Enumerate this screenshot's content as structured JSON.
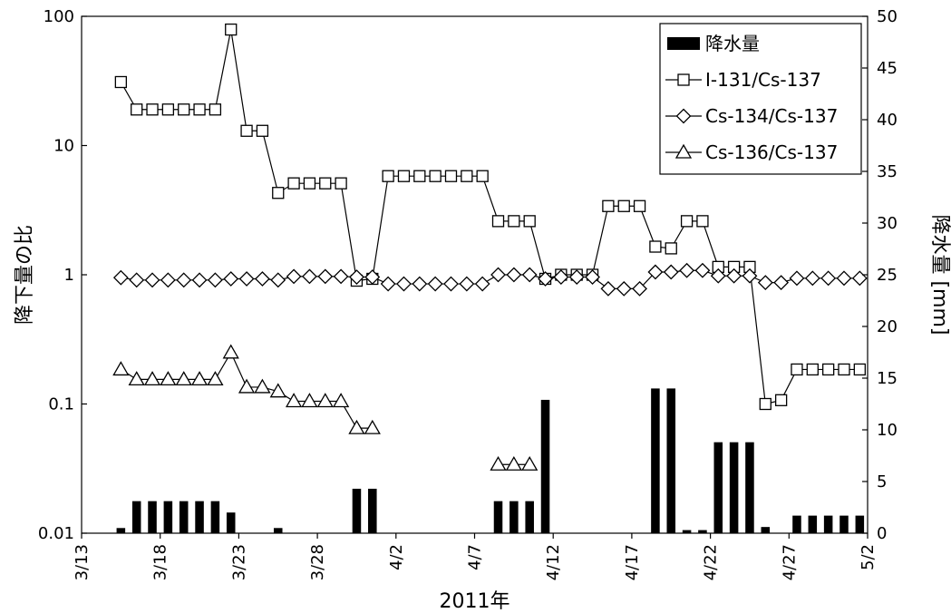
{
  "chart_data": {
    "type": "bar+line",
    "xlabel": "2011年",
    "ylabel_left": "降下量の比",
    "ylabel_right": "降水量 [mm]",
    "x_start_day": 0,
    "x_end_day": 50,
    "x_ticks": [
      {
        "day": 0,
        "label": "3/13"
      },
      {
        "day": 5,
        "label": "3/18"
      },
      {
        "day": 10,
        "label": "3/23"
      },
      {
        "day": 15,
        "label": "3/28"
      },
      {
        "day": 20,
        "label": "4/2"
      },
      {
        "day": 25,
        "label": "4/7"
      },
      {
        "day": 30,
        "label": "4/12"
      },
      {
        "day": 35,
        "label": "4/17"
      },
      {
        "day": 40,
        "label": "4/22"
      },
      {
        "day": 45,
        "label": "4/27"
      },
      {
        "day": 50,
        "label": "5/2"
      }
    ],
    "y_left": {
      "scale": "log",
      "min": 0.01,
      "max": 100,
      "ticks": [
        "0.01",
        "0.1",
        "1",
        "10",
        "100"
      ]
    },
    "y_right": {
      "min": 0,
      "max": 50,
      "step": 5,
      "ticks": [
        "0",
        "5",
        "10",
        "15",
        "20",
        "25",
        "30",
        "35",
        "40",
        "45",
        "50"
      ]
    },
    "legend": {
      "position": "top-right",
      "items": [
        {
          "label": "降水量",
          "symbol": "bar"
        },
        {
          "label": "I-131/Cs-137",
          "symbol": "square"
        },
        {
          "label": "Cs-134/Cs-137",
          "symbol": "diamond"
        },
        {
          "label": "Cs-136/Cs-137",
          "symbol": "triangle"
        }
      ]
    },
    "rain": {
      "name": "降水量",
      "color": "#000000",
      "points": [
        {
          "x": 2.5,
          "y": 0.5
        },
        {
          "x": 3.5,
          "y": 3.1
        },
        {
          "x": 4.5,
          "y": 3.1
        },
        {
          "x": 5.5,
          "y": 3.1
        },
        {
          "x": 6.5,
          "y": 3.1
        },
        {
          "x": 7.5,
          "y": 3.1
        },
        {
          "x": 8.5,
          "y": 3.1
        },
        {
          "x": 9.5,
          "y": 2.0
        },
        {
          "x": 12.5,
          "y": 0.5
        },
        {
          "x": 17.5,
          "y": 4.3
        },
        {
          "x": 18.5,
          "y": 4.3
        },
        {
          "x": 26.5,
          "y": 3.1
        },
        {
          "x": 27.5,
          "y": 3.1
        },
        {
          "x": 28.5,
          "y": 3.1
        },
        {
          "x": 29.5,
          "y": 12.9
        },
        {
          "x": 36.5,
          "y": 14.0
        },
        {
          "x": 37.5,
          "y": 14.0
        },
        {
          "x": 38.5,
          "y": 0.3
        },
        {
          "x": 39.5,
          "y": 0.3
        },
        {
          "x": 40.5,
          "y": 8.8
        },
        {
          "x": 41.5,
          "y": 8.8
        },
        {
          "x": 42.5,
          "y": 8.8
        },
        {
          "x": 43.5,
          "y": 0.6
        },
        {
          "x": 45.5,
          "y": 1.7
        },
        {
          "x": 46.5,
          "y": 1.7
        },
        {
          "x": 47.5,
          "y": 1.7
        },
        {
          "x": 48.5,
          "y": 1.7
        },
        {
          "x": 49.5,
          "y": 1.7
        }
      ]
    },
    "series": [
      {
        "name": "I-131/Cs-137",
        "marker": "square",
        "points": [
          {
            "x": 2.5,
            "y": 31
          },
          {
            "x": 3.5,
            "y": 19
          },
          {
            "x": 4.5,
            "y": 19
          },
          {
            "x": 5.5,
            "y": 19
          },
          {
            "x": 6.5,
            "y": 19
          },
          {
            "x": 7.5,
            "y": 19
          },
          {
            "x": 8.5,
            "y": 19
          },
          {
            "x": 9.5,
            "y": 79
          },
          {
            "x": 10.5,
            "y": 13
          },
          {
            "x": 11.5,
            "y": 13
          },
          {
            "x": 12.5,
            "y": 4.3
          },
          {
            "x": 13.5,
            "y": 5.1
          },
          {
            "x": 14.5,
            "y": 5.1
          },
          {
            "x": 15.5,
            "y": 5.1
          },
          {
            "x": 16.5,
            "y": 5.1
          },
          {
            "x": 17.5,
            "y": 0.9
          },
          {
            "x": 18.5,
            "y": 0.93
          },
          {
            "x": 19.5,
            "y": 5.8
          },
          {
            "x": 20.5,
            "y": 5.8
          },
          {
            "x": 21.5,
            "y": 5.8
          },
          {
            "x": 22.5,
            "y": 5.8
          },
          {
            "x": 23.5,
            "y": 5.8
          },
          {
            "x": 24.5,
            "y": 5.8
          },
          {
            "x": 25.5,
            "y": 5.8
          },
          {
            "x": 26.5,
            "y": 2.6
          },
          {
            "x": 27.5,
            "y": 2.6
          },
          {
            "x": 28.5,
            "y": 2.6
          },
          {
            "x": 29.5,
            "y": 0.93
          },
          {
            "x": 30.5,
            "y": 1.0
          },
          {
            "x": 31.5,
            "y": 1.0
          },
          {
            "x": 32.5,
            "y": 1.0
          },
          {
            "x": 33.5,
            "y": 3.4
          },
          {
            "x": 34.5,
            "y": 3.4
          },
          {
            "x": 35.5,
            "y": 3.4
          },
          {
            "x": 36.5,
            "y": 1.65
          },
          {
            "x": 37.5,
            "y": 1.6
          },
          {
            "x": 38.5,
            "y": 2.6
          },
          {
            "x": 39.5,
            "y": 2.6
          },
          {
            "x": 40.5,
            "y": 1.15
          },
          {
            "x": 41.5,
            "y": 1.15
          },
          {
            "x": 42.5,
            "y": 1.15
          },
          {
            "x": 43.5,
            "y": 0.1
          },
          {
            "x": 44.5,
            "y": 0.107
          },
          {
            "x": 45.5,
            "y": 0.185
          },
          {
            "x": 46.5,
            "y": 0.185
          },
          {
            "x": 47.5,
            "y": 0.185
          },
          {
            "x": 48.5,
            "y": 0.185
          },
          {
            "x": 49.5,
            "y": 0.185
          }
        ]
      },
      {
        "name": "Cs-134/Cs-137",
        "marker": "diamond",
        "points": [
          {
            "x": 2.5,
            "y": 0.95
          },
          {
            "x": 3.5,
            "y": 0.91
          },
          {
            "x": 4.5,
            "y": 0.91
          },
          {
            "x": 5.5,
            "y": 0.91
          },
          {
            "x": 6.5,
            "y": 0.91
          },
          {
            "x": 7.5,
            "y": 0.91
          },
          {
            "x": 8.5,
            "y": 0.91
          },
          {
            "x": 9.5,
            "y": 0.93
          },
          {
            "x": 10.5,
            "y": 0.93
          },
          {
            "x": 11.5,
            "y": 0.93
          },
          {
            "x": 12.5,
            "y": 0.91
          },
          {
            "x": 13.5,
            "y": 0.97
          },
          {
            "x": 14.5,
            "y": 0.97
          },
          {
            "x": 15.5,
            "y": 0.97
          },
          {
            "x": 16.5,
            "y": 0.97
          },
          {
            "x": 17.5,
            "y": 0.96
          },
          {
            "x": 18.5,
            "y": 0.96
          },
          {
            "x": 19.5,
            "y": 0.85
          },
          {
            "x": 20.5,
            "y": 0.85
          },
          {
            "x": 21.5,
            "y": 0.85
          },
          {
            "x": 22.5,
            "y": 0.85
          },
          {
            "x": 23.5,
            "y": 0.85
          },
          {
            "x": 24.5,
            "y": 0.85
          },
          {
            "x": 25.5,
            "y": 0.85
          },
          {
            "x": 26.5,
            "y": 1.0
          },
          {
            "x": 27.5,
            "y": 1.0
          },
          {
            "x": 28.5,
            "y": 1.0
          },
          {
            "x": 29.5,
            "y": 0.93
          },
          {
            "x": 30.5,
            "y": 0.96
          },
          {
            "x": 31.5,
            "y": 0.96
          },
          {
            "x": 32.5,
            "y": 0.96
          },
          {
            "x": 33.5,
            "y": 0.78
          },
          {
            "x": 34.5,
            "y": 0.78
          },
          {
            "x": 35.5,
            "y": 0.78
          },
          {
            "x": 36.5,
            "y": 1.05
          },
          {
            "x": 37.5,
            "y": 1.05
          },
          {
            "x": 38.5,
            "y": 1.08
          },
          {
            "x": 39.5,
            "y": 1.08
          },
          {
            "x": 40.5,
            "y": 0.98
          },
          {
            "x": 41.5,
            "y": 0.98
          },
          {
            "x": 42.5,
            "y": 0.98
          },
          {
            "x": 43.5,
            "y": 0.87
          },
          {
            "x": 44.5,
            "y": 0.87
          },
          {
            "x": 45.5,
            "y": 0.94
          },
          {
            "x": 46.5,
            "y": 0.94
          },
          {
            "x": 47.5,
            "y": 0.94
          },
          {
            "x": 48.5,
            "y": 0.94
          },
          {
            "x": 49.5,
            "y": 0.94
          }
        ]
      },
      {
        "name": "Cs-136/Cs-137",
        "marker": "triangle",
        "points": [
          {
            "x": 2.5,
            "y": 0.185
          },
          {
            "x": 3.5,
            "y": 0.155
          },
          {
            "x": 4.5,
            "y": 0.155
          },
          {
            "x": 5.5,
            "y": 0.155
          },
          {
            "x": 6.5,
            "y": 0.155
          },
          {
            "x": 7.5,
            "y": 0.155
          },
          {
            "x": 8.5,
            "y": 0.155
          },
          {
            "x": 9.5,
            "y": 0.25
          },
          {
            "x": 10.5,
            "y": 0.135
          },
          {
            "x": 11.5,
            "y": 0.135
          },
          {
            "x": 12.5,
            "y": 0.125
          },
          {
            "x": 13.5,
            "y": 0.105
          },
          {
            "x": 14.5,
            "y": 0.105
          },
          {
            "x": 15.5,
            "y": 0.105
          },
          {
            "x": 16.5,
            "y": 0.105
          },
          {
            "x": 17.5,
            "y": 0.065
          },
          {
            "x": 18.5,
            "y": 0.065
          },
          {
            "x": 26.5,
            "y": 0.034
          },
          {
            "x": 27.5,
            "y": 0.034
          },
          {
            "x": 28.5,
            "y": 0.034
          }
        ]
      }
    ]
  }
}
